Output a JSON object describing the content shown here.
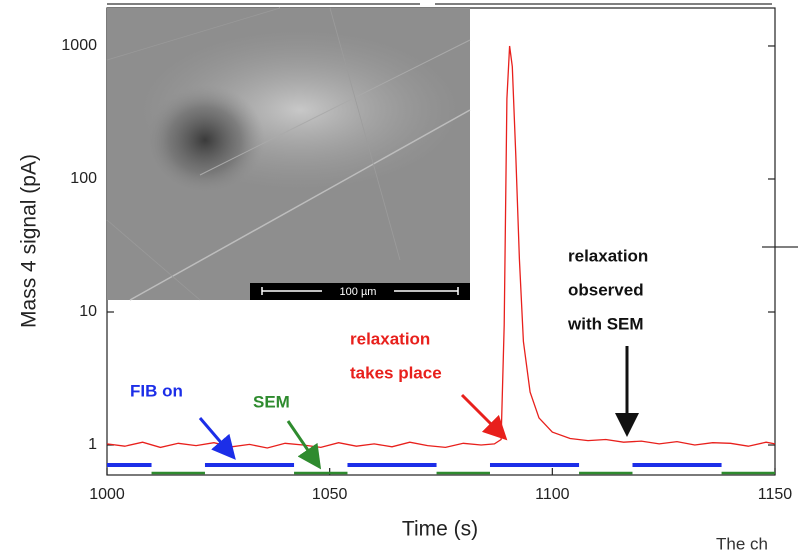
{
  "chart_data": {
    "type": "line",
    "x_label": "Time (s)",
    "y_label": "Mass 4 signal (pA)",
    "log_y": true,
    "xlim": [
      1000,
      1150
    ],
    "xticks": [
      1000,
      1050,
      1100,
      1150
    ],
    "ylim": [
      0.595,
      1930
    ],
    "yticks": [
      1,
      10,
      100,
      1000
    ],
    "series": [
      {
        "color": "#e8201c",
        "x": [
          1000,
          1004,
          1008,
          1012,
          1016,
          1020,
          1024,
          1028,
          1032,
          1036,
          1040,
          1044,
          1048,
          1052,
          1056,
          1060,
          1064,
          1068,
          1072,
          1076,
          1080,
          1084,
          1087,
          1088.5,
          1089.2,
          1089.8,
          1090.4,
          1091,
          1091.8,
          1092.6,
          1093.5,
          1095,
          1097,
          1100,
          1104,
          1108,
          1112,
          1116,
          1120,
          1124,
          1128,
          1132,
          1136,
          1140,
          1144,
          1148,
          1150
        ],
        "values": [
          1.02,
          0.98,
          1.05,
          0.96,
          1.03,
          0.99,
          1.04,
          0.97,
          1.01,
          0.95,
          1.03,
          1.0,
          0.96,
          1.04,
          0.98,
          1.02,
          0.97,
          1.05,
          0.99,
          0.96,
          1.03,
          1.0,
          1.02,
          1.1,
          8,
          400,
          1000,
          700,
          150,
          25,
          6,
          2.5,
          1.6,
          1.25,
          1.12,
          1.08,
          1.1,
          1.05,
          1.07,
          1.02,
          1.06,
          1.0,
          1.04,
          1.03,
          0.98,
          1.05,
          1.02
        ]
      }
    ],
    "intervals": [
      {
        "color": "#1c2ee8",
        "spans": [
          [
            1000,
            1010
          ],
          [
            1022,
            1042
          ],
          [
            1054,
            1074
          ],
          [
            1086,
            1106
          ],
          [
            1118,
            1138
          ]
        ]
      },
      {
        "color": "#2e8b2e",
        "spans": [
          [
            1010,
            1022
          ],
          [
            1042,
            1054
          ],
          [
            1074,
            1086
          ],
          [
            1106,
            1118
          ],
          [
            1138,
            1150
          ]
        ]
      }
    ],
    "annotations": [
      {
        "lines": [
          "FIB on"
        ],
        "color": "#1c2ee8"
      },
      {
        "lines": [
          "SEM"
        ],
        "color": "#2e8b2e"
      },
      {
        "lines": [
          "relaxation",
          "takes place"
        ],
        "color": "#e8201c"
      },
      {
        "lines": [
          "relaxation",
          "observed",
          "with SEM"
        ],
        "color": "#111111"
      }
    ],
    "inset": {
      "scale_bar": "100 µm"
    },
    "caption_fragment": "The ch"
  }
}
